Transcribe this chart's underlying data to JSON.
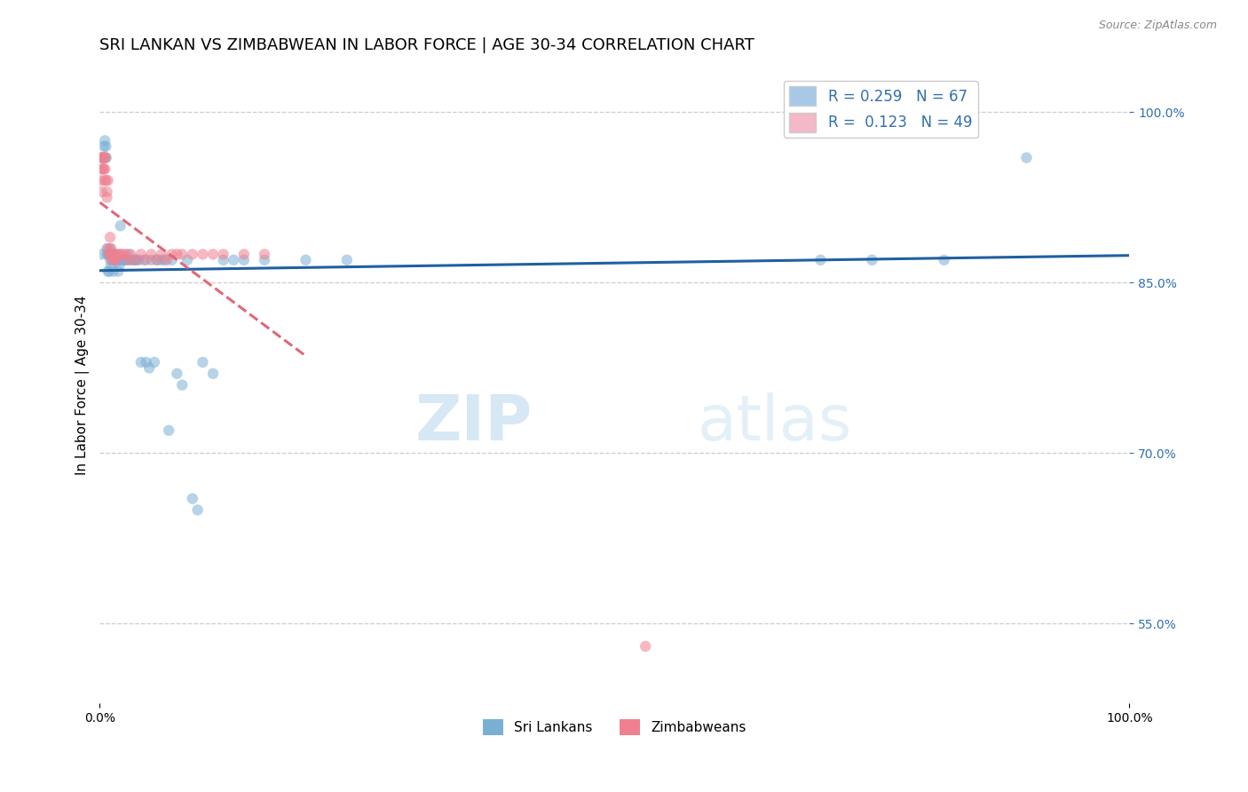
{
  "title": "SRI LANKAN VS ZIMBABWEAN IN LABOR FORCE | AGE 30-34 CORRELATION CHART",
  "source": "Source: ZipAtlas.com",
  "ylabel": "In Labor Force | Age 30-34",
  "xlim": [
    0.0,
    1.0
  ],
  "ylim": [
    0.48,
    1.04
  ],
  "yticks": [
    0.55,
    0.7,
    0.85,
    1.0
  ],
  "ytick_labels": [
    "55.0%",
    "70.0%",
    "85.0%",
    "100.0%"
  ],
  "xtick_labels": [
    "0.0%",
    "100.0%"
  ],
  "watermark_zip": "ZIP",
  "watermark_atlas": "atlas",
  "legend_entries": [
    {
      "label": "R = 0.259   N = 67",
      "color": "#a8c8e8"
    },
    {
      "label": "R =  0.123   N = 49",
      "color": "#f4b8c8"
    }
  ],
  "legend_bottom": [
    "Sri Lankans",
    "Zimbabweans"
  ],
  "sri_lankan_color": "#7aafd4",
  "zimbabwean_color": "#f08090",
  "sri_lankan_trend_color": "#2060a0",
  "zimbabwean_trend_color": "#e06878",
  "grid_color": "#cccccc",
  "background_color": "#ffffff",
  "title_fontsize": 13,
  "axis_label_fontsize": 11,
  "tick_fontsize": 10,
  "scatter_alpha": 0.55,
  "scatter_size": 80,
  "sri_lankan_x": [
    0.002,
    0.003,
    0.004,
    0.004,
    0.005,
    0.005,
    0.006,
    0.006,
    0.007,
    0.007,
    0.008,
    0.008,
    0.009,
    0.009,
    0.01,
    0.01,
    0.011,
    0.011,
    0.012,
    0.012,
    0.013,
    0.014,
    0.015,
    0.016,
    0.017,
    0.018,
    0.019,
    0.02,
    0.02,
    0.022,
    0.023,
    0.025,
    0.026,
    0.028,
    0.03,
    0.032,
    0.034,
    0.036,
    0.038,
    0.04,
    0.043,
    0.045,
    0.048,
    0.05,
    0.053,
    0.056,
    0.06,
    0.063,
    0.067,
    0.07,
    0.075,
    0.08,
    0.085,
    0.09,
    0.095,
    0.1,
    0.11,
    0.12,
    0.13,
    0.14,
    0.16,
    0.2,
    0.24,
    0.7,
    0.75,
    0.82,
    0.9
  ],
  "sri_lankan_y": [
    0.875,
    0.96,
    0.96,
    0.97,
    0.96,
    0.975,
    0.96,
    0.97,
    0.88,
    0.875,
    0.875,
    0.86,
    0.875,
    0.86,
    0.88,
    0.87,
    0.875,
    0.865,
    0.875,
    0.87,
    0.86,
    0.875,
    0.875,
    0.87,
    0.87,
    0.86,
    0.865,
    0.9,
    0.87,
    0.87,
    0.87,
    0.87,
    0.87,
    0.875,
    0.87,
    0.87,
    0.87,
    0.87,
    0.87,
    0.78,
    0.87,
    0.78,
    0.775,
    0.87,
    0.78,
    0.87,
    0.87,
    0.87,
    0.72,
    0.87,
    0.77,
    0.76,
    0.87,
    0.66,
    0.65,
    0.78,
    0.77,
    0.87,
    0.87,
    0.87,
    0.87,
    0.87,
    0.87,
    0.87,
    0.87,
    0.87,
    0.96
  ],
  "zimbabwean_x": [
    0.001,
    0.001,
    0.002,
    0.002,
    0.002,
    0.003,
    0.003,
    0.004,
    0.004,
    0.005,
    0.005,
    0.006,
    0.006,
    0.007,
    0.007,
    0.008,
    0.008,
    0.009,
    0.01,
    0.01,
    0.011,
    0.012,
    0.013,
    0.014,
    0.015,
    0.016,
    0.018,
    0.02,
    0.022,
    0.025,
    0.028,
    0.03,
    0.035,
    0.04,
    0.045,
    0.05,
    0.055,
    0.06,
    0.065,
    0.07,
    0.075,
    0.08,
    0.09,
    0.1,
    0.11,
    0.12,
    0.14,
    0.16,
    0.53
  ],
  "zimbabwean_y": [
    0.96,
    0.94,
    0.96,
    0.95,
    0.93,
    0.96,
    0.95,
    0.95,
    0.96,
    0.95,
    0.94,
    0.94,
    0.96,
    0.93,
    0.925,
    0.94,
    0.88,
    0.875,
    0.89,
    0.875,
    0.88,
    0.87,
    0.875,
    0.87,
    0.875,
    0.87,
    0.875,
    0.875,
    0.875,
    0.875,
    0.87,
    0.875,
    0.87,
    0.875,
    0.87,
    0.875,
    0.87,
    0.875,
    0.87,
    0.875,
    0.875,
    0.875,
    0.875,
    0.875,
    0.875,
    0.875,
    0.875,
    0.875,
    0.53
  ]
}
